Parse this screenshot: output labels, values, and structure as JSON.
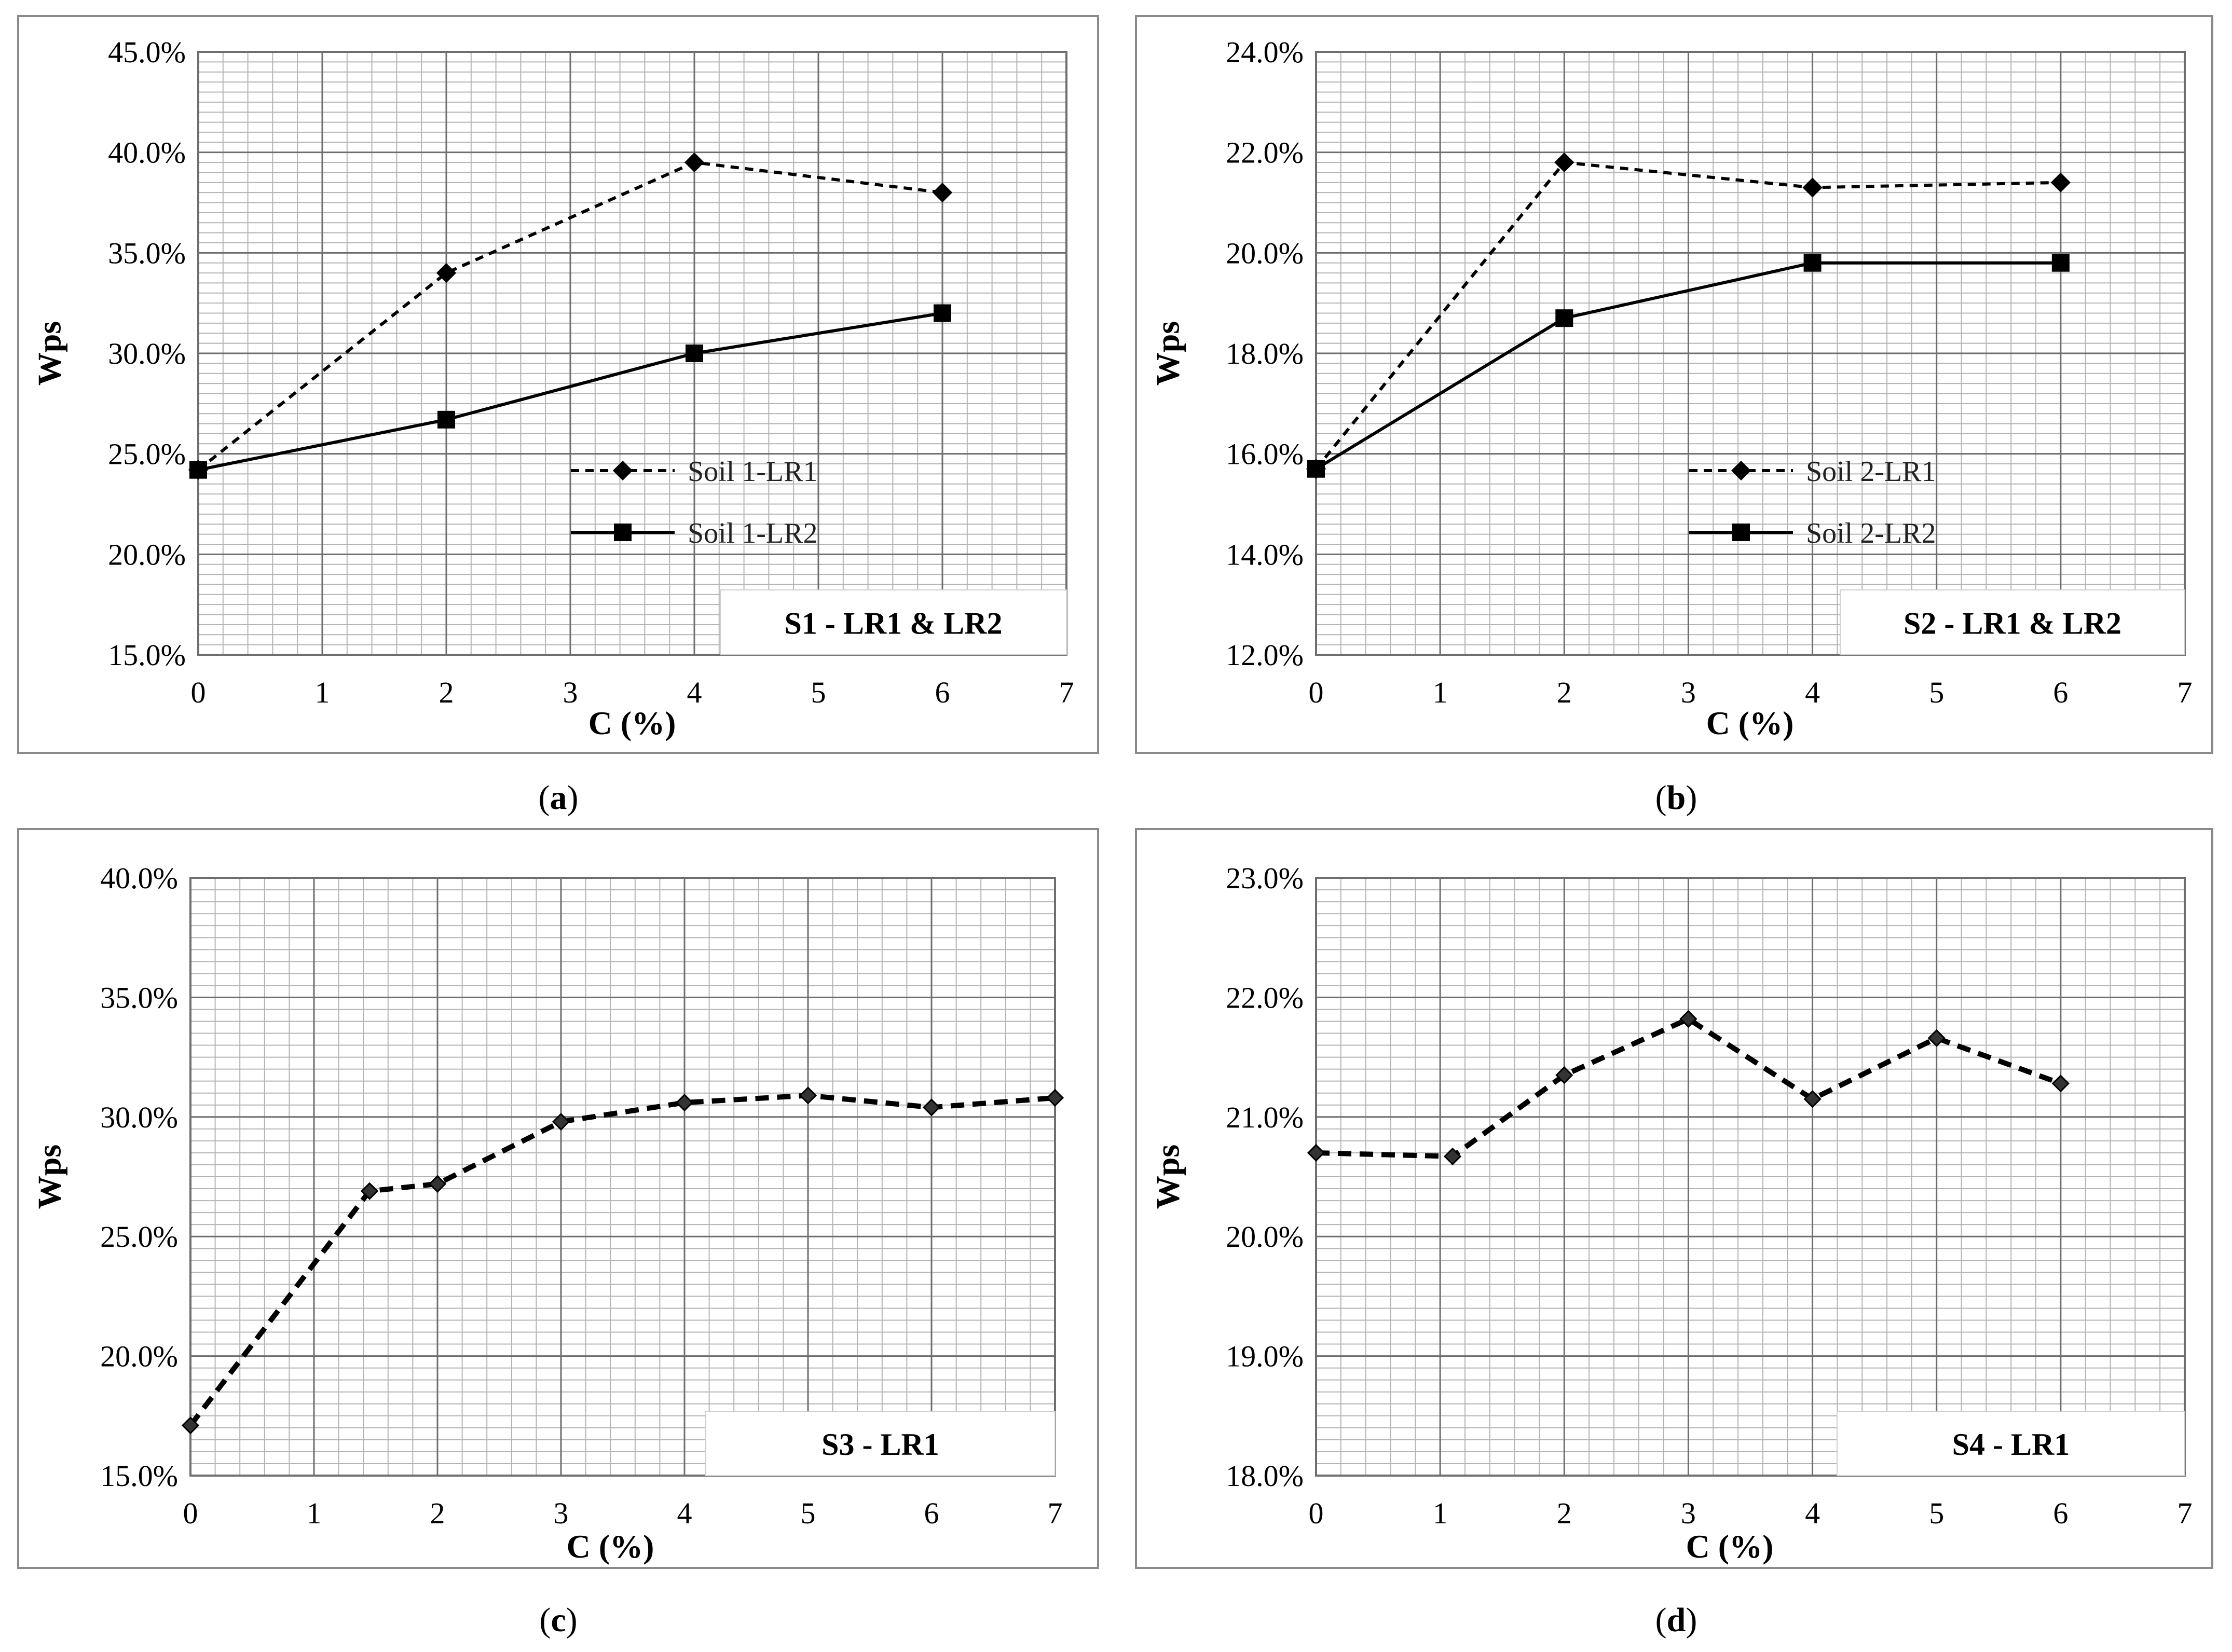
{
  "colors": {
    "grid_minor": "#b4b4b4",
    "grid_major": "#6e6e6e",
    "frame": "#8a8a8a",
    "series": "#000000"
  },
  "chart_data": [
    {
      "id": "a",
      "type": "line",
      "caption": "a",
      "xlabel": "C (%)",
      "ylabel": "Wps",
      "xlim": [
        0,
        7
      ],
      "ylim": [
        15,
        45
      ],
      "x_ticks": [
        "0",
        "1",
        "2",
        "3",
        "4",
        "5",
        "6",
        "7"
      ],
      "y_ticks": [
        "15.0%",
        "20.0%",
        "25.0%",
        "30.0%",
        "35.0%",
        "40.0%",
        "45.0%"
      ],
      "annotation": "S1 - LR1 & LR2",
      "legend": "center-right",
      "series": [
        {
          "name": "Soil 1-LR1",
          "style": "dashed",
          "marker": "diamond",
          "x": [
            0,
            2,
            4,
            6
          ],
          "values": [
            24.2,
            34.0,
            39.5,
            38.0
          ]
        },
        {
          "name": "Soil 1-LR2",
          "style": "solid",
          "marker": "square",
          "x": [
            0,
            2,
            4,
            6
          ],
          "values": [
            24.2,
            26.7,
            30.0,
            32.0
          ]
        }
      ]
    },
    {
      "id": "b",
      "type": "line",
      "caption": "b",
      "xlabel": "C (%)",
      "ylabel": "Wps",
      "xlim": [
        0,
        7
      ],
      "ylim": [
        12,
        24
      ],
      "x_ticks": [
        "0",
        "1",
        "2",
        "3",
        "4",
        "5",
        "6",
        "7"
      ],
      "y_ticks": [
        "12.0%",
        "14.0%",
        "16.0%",
        "18.0%",
        "20.0%",
        "22.0%",
        "24.0%"
      ],
      "annotation": "S2 - LR1 & LR2",
      "legend": "center-right",
      "series": [
        {
          "name": "Soil 2-LR1",
          "style": "dashed",
          "marker": "diamond",
          "x": [
            0,
            2,
            4,
            6
          ],
          "values": [
            15.7,
            21.8,
            21.3,
            21.4
          ]
        },
        {
          "name": "Soil 2-LR2",
          "style": "solid",
          "marker": "square",
          "x": [
            0,
            2,
            4,
            6
          ],
          "values": [
            15.7,
            18.7,
            19.8,
            19.8
          ]
        }
      ]
    },
    {
      "id": "c",
      "type": "line",
      "caption": "c",
      "xlabel": "C (%)",
      "ylabel": "Wps",
      "xlim": [
        0,
        7
      ],
      "ylim": [
        15,
        40
      ],
      "x_ticks": [
        "0",
        "1",
        "2",
        "3",
        "4",
        "5",
        "6",
        "7"
      ],
      "y_ticks": [
        "15.0%",
        "20.0%",
        "25.0%",
        "30.0%",
        "35.0%",
        "40.0%"
      ],
      "annotation": "S3 - LR1",
      "legend": "none",
      "series": [
        {
          "name": "S3 - LR1",
          "style": "thick-dashed",
          "marker": "small-diamond",
          "x": [
            0,
            1.45,
            2,
            3,
            4,
            5,
            6,
            7
          ],
          "values": [
            17.1,
            26.9,
            27.2,
            29.8,
            30.6,
            30.9,
            30.4,
            30.8
          ]
        }
      ]
    },
    {
      "id": "d",
      "type": "line",
      "caption": "d",
      "xlabel": "C (%)",
      "ylabel": "Wps",
      "xlim": [
        0,
        7
      ],
      "ylim": [
        18,
        23
      ],
      "x_ticks": [
        "0",
        "1",
        "2",
        "3",
        "4",
        "5",
        "6",
        "7"
      ],
      "y_ticks": [
        "18.0%",
        "19.0%",
        "20.0%",
        "21.0%",
        "22.0%",
        "23.0%"
      ],
      "annotation": "S4 - LR1",
      "legend": "none",
      "series": [
        {
          "name": "S4 - LR1",
          "style": "thick-dashed",
          "marker": "small-diamond",
          "x": [
            0,
            1.1,
            2,
            3,
            4,
            5,
            6
          ],
          "values": [
            20.7,
            20.67,
            21.35,
            21.82,
            21.15,
            21.66,
            21.28
          ]
        }
      ]
    }
  ]
}
